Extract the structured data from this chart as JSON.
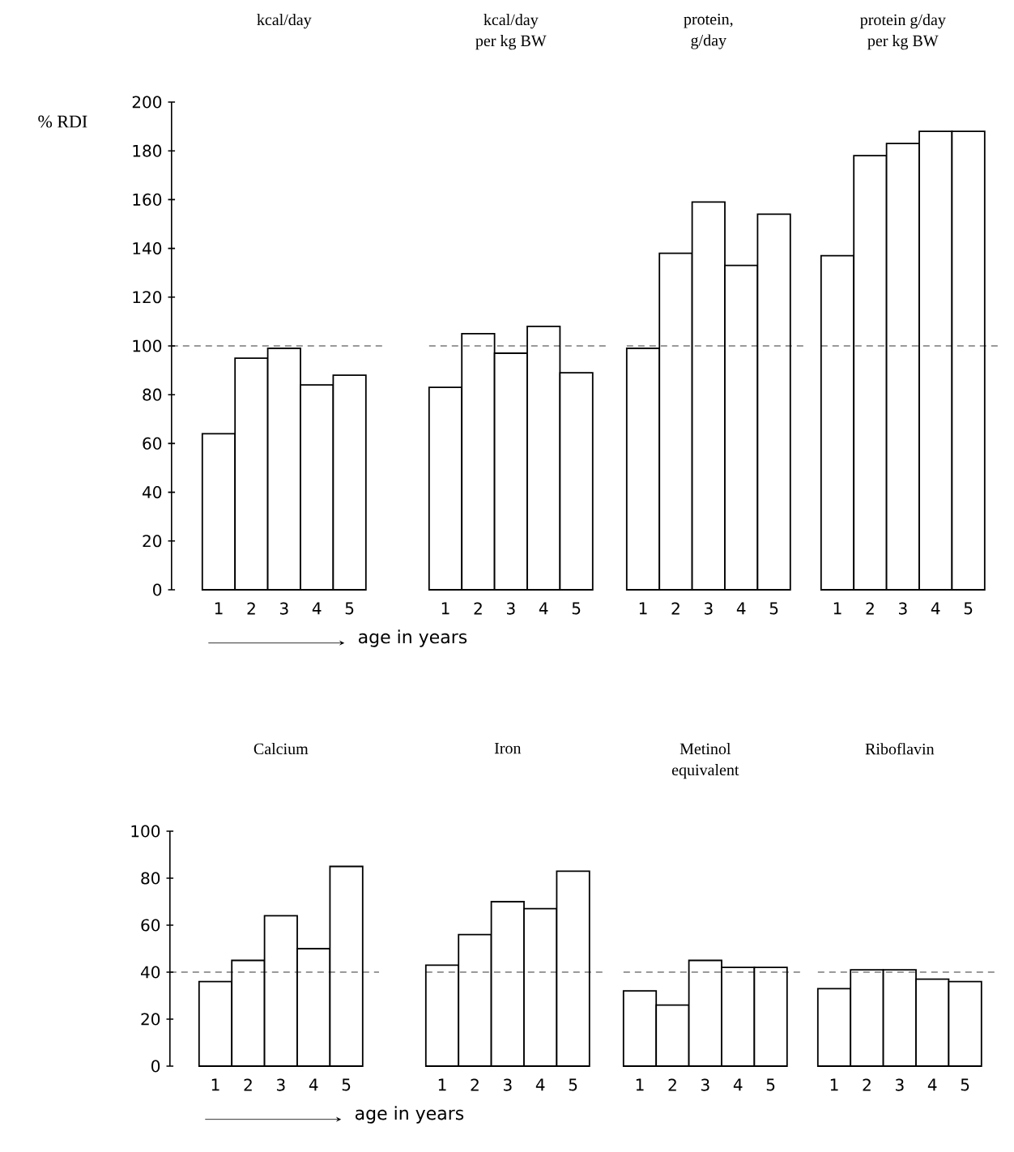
{
  "chart_data": [
    {
      "type": "bar",
      "title": "kcal/day",
      "ylabel": "% RDI",
      "xlabel": "age in years",
      "categories": [
        "1",
        "2",
        "3",
        "4",
        "5"
      ],
      "values": [
        64,
        95,
        99,
        84,
        88
      ],
      "color": "#ffffff",
      "ylim": [
        0,
        200
      ],
      "yticks": [
        0,
        20,
        40,
        60,
        80,
        100,
        120,
        140,
        160,
        180,
        200
      ],
      "ref_lines": [
        {
          "axis": "y",
          "value": 100,
          "line_style": "dashed"
        }
      ]
    },
    {
      "type": "bar",
      "title": "kcal/day",
      "subtitle": "per kg BW",
      "categories": [
        "1",
        "2",
        "3",
        "4",
        "5"
      ],
      "values": [
        83,
        105,
        97,
        108,
        89
      ],
      "color": "#ffffff",
      "ylim": [
        0,
        200
      ],
      "tick_labels": "x",
      "ref_lines": [
        {
          "axis": "y",
          "value": 100,
          "line_style": "dashed"
        }
      ]
    },
    {
      "type": "bar",
      "title": "protein,",
      "subtitle": "g/day",
      "categories": [
        "1",
        "2",
        "3",
        "4",
        "5"
      ],
      "values": [
        99,
        138,
        159,
        133,
        154
      ],
      "color": "#ffffff",
      "ylim": [
        0,
        200
      ],
      "tick_labels": "x",
      "ref_lines": [
        {
          "axis": "y",
          "value": 100,
          "line_style": "dashed"
        }
      ]
    },
    {
      "type": "bar",
      "title": "protein g/day",
      "subtitle": "per kg BW",
      "categories": [
        "1",
        "2",
        "3",
        "4",
        "5"
      ],
      "values": [
        137,
        178,
        183,
        188,
        188
      ],
      "color": "#ffffff",
      "ylim": [
        0,
        200
      ],
      "tick_labels": "x",
      "ref_lines": [
        {
          "axis": "y",
          "value": 100,
          "line_style": "dashed"
        }
      ]
    },
    {
      "type": "bar",
      "title": "Calcium",
      "xlabel": "age in years",
      "categories": [
        "1",
        "2",
        "3",
        "4",
        "5"
      ],
      "values": [
        36,
        45,
        64,
        50,
        85
      ],
      "color": "#ffffff",
      "ylim": [
        0,
        100
      ],
      "yticks": [
        0,
        20,
        40,
        60,
        80,
        100
      ],
      "ref_lines": [
        {
          "axis": "y",
          "value": 40,
          "line_style": "dashed"
        }
      ]
    },
    {
      "type": "bar",
      "title": "Iron",
      "categories": [
        "1",
        "2",
        "3",
        "4",
        "5"
      ],
      "values": [
        43,
        56,
        70,
        67,
        83
      ],
      "color": "#ffffff",
      "ylim": [
        0,
        100
      ],
      "tick_labels": "x",
      "ref_lines": [
        {
          "axis": "y",
          "value": 40,
          "line_style": "dashed"
        }
      ]
    },
    {
      "type": "bar",
      "title": "Metinol",
      "subtitle": "equivalent",
      "categories": [
        "1",
        "2",
        "3",
        "4",
        "5"
      ],
      "values": [
        32,
        26,
        45,
        42,
        42
      ],
      "color": "#ffffff",
      "ylim": [
        0,
        100
      ],
      "tick_labels": "x",
      "ref_lines": [
        {
          "axis": "y",
          "value": 40,
          "line_style": "dashed"
        }
      ]
    },
    {
      "type": "bar",
      "title": "Riboflavin",
      "categories": [
        "1",
        "2",
        "3",
        "4",
        "5"
      ],
      "values": [
        33,
        41,
        41,
        37,
        36
      ],
      "color": "#ffffff",
      "ylim": [
        0,
        100
      ],
      "tick_labels": "x",
      "ref_lines": [
        {
          "axis": "y",
          "value": 40,
          "line_style": "dashed"
        }
      ]
    }
  ]
}
